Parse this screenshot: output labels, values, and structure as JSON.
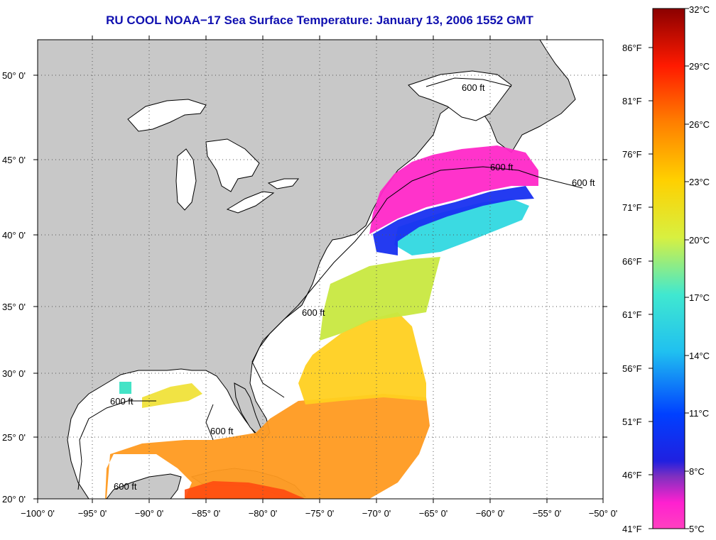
{
  "title": "RU COOL  NOAA−17  Sea Surface Temperature:  January 13, 2006 1552 GMT",
  "colors": {
    "land": "#c8c8c8",
    "ocean": "#ffffff",
    "title": "#1010b0"
  },
  "lon_ticks": [
    "−100° 0'",
    "−95° 0'",
    "−90° 0'",
    "−85° 0'",
    "−80° 0'",
    "−75° 0'",
    "−70° 0'",
    "−65° 0'",
    "−60° 0'",
    "−55° 0'",
    "−50° 0'"
  ],
  "lat_ticks": [
    "50° 0'",
    "45° 0'",
    "40° 0'",
    "35° 0'",
    "30° 0'",
    "25° 0'",
    "20° 0'"
  ],
  "isobath_labels": [
    "600 ft",
    "600 ft",
    "600 ft",
    "600 ft",
    "600 ft",
    "600 ft",
    "600 ft"
  ],
  "colorbar": {
    "celsius": [
      "32°C",
      "29°C",
      "26°C",
      "23°C",
      "20°C",
      "17°C",
      "14°C",
      "11°C",
      "8°C",
      "5°C"
    ],
    "fahrenheit": [
      "86°F",
      "81°F",
      "76°F",
      "71°F",
      "66°F",
      "61°F",
      "56°F",
      "51°F",
      "46°F",
      "41°F"
    ],
    "range_c": [
      5,
      32
    ],
    "range_f": [
      41,
      89.6
    ],
    "gradient": [
      "#8b0000",
      "#ff1a00",
      "#ff8000",
      "#ffd000",
      "#d8f040",
      "#40e8d0",
      "#20c0f0",
      "#0040ff",
      "#2020e0",
      "#8030c0",
      "#ff20d0",
      "#ff40c0"
    ]
  }
}
